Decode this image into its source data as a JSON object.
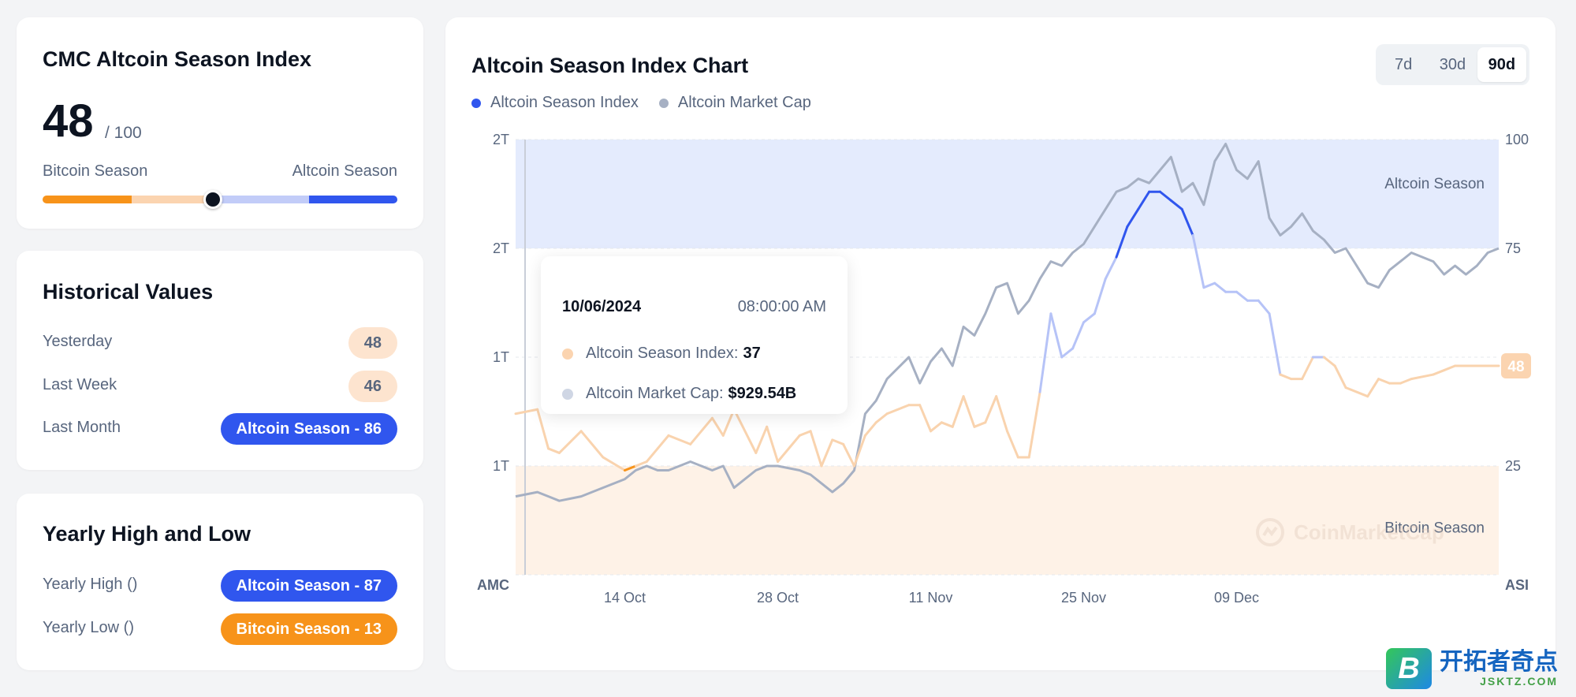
{
  "index_card": {
    "title": "CMC Altcoin Season Index",
    "score": "48",
    "score_max": "/ 100",
    "left_label": "Bitcoin Season",
    "right_label": "Altcoin Season",
    "value": 48
  },
  "historical": {
    "title": "Historical Values",
    "rows": [
      {
        "label": "Yesterday",
        "value": "48"
      },
      {
        "label": "Last Week",
        "value": "46"
      },
      {
        "label": "Last Month",
        "value": "Altcoin Season - 86"
      }
    ]
  },
  "yearly": {
    "title": "Yearly High and Low",
    "rows": [
      {
        "label": "Yearly High ()",
        "value": "Altcoin Season - 87"
      },
      {
        "label": "Yearly Low ()",
        "value": "Bitcoin Season - 13"
      }
    ]
  },
  "chart": {
    "title": "Altcoin Season Index Chart",
    "ranges": [
      "7d",
      "30d",
      "90d"
    ],
    "active_range": "90d",
    "legend": [
      {
        "name": "Altcoin Season Index",
        "color": "#3056ee"
      },
      {
        "name": "Altcoin Market Cap",
        "color": "#a6b0c3"
      }
    ],
    "tooltip": {
      "date": "10/06/2024",
      "time": "08:00:00 AM",
      "index_label": "Altcoin Season Index:",
      "index_value": "37",
      "cap_label": "Altcoin Market Cap:",
      "cap_value": "$929.54B"
    },
    "watermark": "CoinMarketCap"
  },
  "chart_data": {
    "type": "line",
    "title": "Altcoin Season Index Chart",
    "left_axis_label": "AMC",
    "right_axis_label": "ASI",
    "left_ticks": [
      "2T",
      "2T",
      "1T",
      "1T"
    ],
    "right_ticks": [
      "100",
      "75",
      "25"
    ],
    "right_ticks_values": [
      100,
      75,
      25
    ],
    "y_right_lim": [
      0,
      100
    ],
    "x_ticks": [
      "14 Oct",
      "28 Oct",
      "11 Nov",
      "25 Nov",
      "09 Dec"
    ],
    "x_tick_days": [
      10,
      24,
      38,
      52,
      66
    ],
    "x_lim_days": [
      0,
      90
    ],
    "zones": [
      {
        "label": "Altcoin Season",
        "from": 75,
        "to": 100,
        "color": "#e4ebfd"
      },
      {
        "label": "Bitcoin Season",
        "from": 0,
        "to": 25,
        "color": "#fef2e7"
      }
    ],
    "current_value_badge": "48",
    "series": [
      {
        "name": "Altcoin Season Index",
        "axis": "right",
        "x_days": [
          0,
          2,
          3,
          4,
          6,
          8,
          10,
          11,
          12,
          13,
          14,
          16,
          18,
          19,
          20,
          22,
          23,
          24,
          26,
          27,
          28,
          29,
          30,
          31,
          32,
          33,
          34,
          36,
          37,
          38,
          39,
          40,
          41,
          42,
          43,
          44,
          45,
          46,
          47,
          48,
          49,
          50,
          51,
          52,
          53,
          54,
          55,
          56,
          57,
          58,
          59,
          60,
          61,
          62,
          63,
          64,
          65,
          66,
          67,
          68,
          69,
          70,
          71,
          72,
          73,
          74,
          75,
          76,
          78,
          79,
          80,
          81,
          82,
          84,
          85,
          86,
          87,
          88,
          89,
          90
        ],
        "values": [
          37,
          38,
          29,
          28,
          33,
          27,
          24,
          25,
          26,
          29,
          32,
          30,
          36,
          32,
          38,
          28,
          34,
          26,
          32,
          33,
          25,
          31,
          30,
          25,
          32,
          35,
          37,
          39,
          39,
          33,
          35,
          34,
          41,
          34,
          35,
          41,
          33,
          27,
          27,
          42,
          60,
          50,
          52,
          58,
          60,
          68,
          73,
          80,
          84,
          88,
          88,
          86,
          84,
          78,
          66,
          67,
          65,
          65,
          63,
          63,
          60,
          46,
          45,
          45,
          50,
          50,
          48,
          43,
          41,
          45,
          44,
          44,
          45,
          46,
          47,
          48,
          48,
          48,
          48,
          48
        ],
        "color_high": "#3056ee",
        "color_mid": "#b6c3f7",
        "color_low": "#f7931a",
        "color_mid_low": "#f9d3ae"
      },
      {
        "name": "Altcoin Market Cap",
        "axis": "right",
        "x_days": [
          0,
          2,
          3,
          4,
          6,
          8,
          10,
          11,
          12,
          13,
          14,
          16,
          18,
          19,
          20,
          22,
          23,
          24,
          26,
          27,
          28,
          29,
          30,
          31,
          32,
          33,
          34,
          36,
          37,
          38,
          39,
          40,
          41,
          42,
          43,
          44,
          45,
          46,
          47,
          48,
          49,
          50,
          51,
          52,
          53,
          54,
          55,
          56,
          57,
          58,
          59,
          60,
          61,
          62,
          63,
          64,
          65,
          66,
          67,
          68,
          69,
          70,
          71,
          72,
          73,
          74,
          75,
          76,
          78,
          79,
          80,
          81,
          82,
          84,
          85,
          86,
          87,
          88,
          89,
          90
        ],
        "values": [
          18,
          19,
          18,
          17,
          18,
          20,
          22,
          24,
          25,
          24,
          24,
          26,
          24,
          25,
          20,
          24,
          25,
          25,
          24,
          23,
          21,
          19,
          21,
          24,
          37,
          40,
          45,
          50,
          44,
          49,
          52,
          48,
          57,
          55,
          60,
          66,
          67,
          60,
          63,
          68,
          72,
          71,
          74,
          76,
          80,
          84,
          88,
          89,
          91,
          90,
          93,
          96,
          88,
          90,
          85,
          95,
          99,
          93,
          91,
          95,
          82,
          78,
          80,
          83,
          79,
          77,
          74,
          75,
          67,
          66,
          70,
          72,
          74,
          72,
          69,
          71,
          69,
          71,
          74,
          75
        ],
        "color": "#a6b0c3"
      }
    ]
  }
}
